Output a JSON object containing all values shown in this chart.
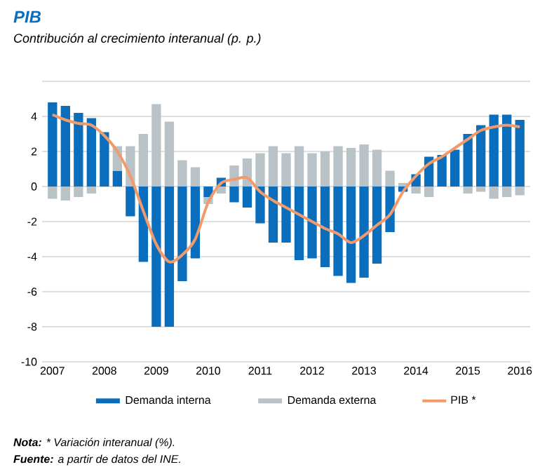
{
  "chart_data": {
    "type": "bar",
    "title": "PIB",
    "subtitle": "Contribución al crecimiento interanual (p. p.)",
    "x": [
      2007,
      2007.25,
      2007.5,
      2007.75,
      2008,
      2008.25,
      2008.5,
      2008.75,
      2009,
      2009.25,
      2009.5,
      2009.75,
      2010,
      2010.25,
      2010.5,
      2010.75,
      2011,
      2011.25,
      2011.5,
      2011.75,
      2012,
      2012.25,
      2012.5,
      2012.75,
      2013,
      2013.25,
      2013.5,
      2013.75,
      2014,
      2014.25,
      2014.5,
      2014.75,
      2015,
      2015.25,
      2015.5,
      2015.75,
      2016
    ],
    "stacked": true,
    "series": [
      {
        "name": "Demanda interna",
        "color": "#0a6ebd",
        "values": [
          4.8,
          4.6,
          4.2,
          3.9,
          3.1,
          0.9,
          -1.7,
          -4.3,
          -8.0,
          -8.0,
          -5.4,
          -4.1,
          -0.6,
          0.5,
          -0.9,
          -1.2,
          -2.1,
          -3.2,
          -3.2,
          -4.2,
          -4.1,
          -4.6,
          -5.1,
          -5.5,
          -5.2,
          -4.4,
          -2.6,
          -0.3,
          0.7,
          1.7,
          1.8,
          2.1,
          3.0,
          3.5,
          4.1,
          4.1,
          3.8
        ]
      },
      {
        "name": "Demanda externa",
        "color": "#b8c2c7",
        "values": [
          -0.7,
          -0.8,
          -0.6,
          -0.4,
          null,
          1.4,
          2.3,
          3.0,
          4.7,
          3.7,
          1.5,
          1.1,
          -0.4,
          -0.4,
          1.2,
          1.6,
          1.9,
          2.3,
          1.9,
          2.3,
          1.9,
          2.0,
          2.3,
          2.2,
          2.4,
          2.1,
          0.9,
          0.2,
          -0.4,
          -0.6,
          null,
          null,
          -0.4,
          -0.3,
          -0.7,
          -0.6,
          -0.5
        ]
      },
      {
        "name": "PIB *",
        "type": "line",
        "color": "#f39a6b",
        "values": [
          4.1,
          3.8,
          3.6,
          3.5,
          2.9,
          2.0,
          0.6,
          -1.4,
          -3.3,
          -4.3,
          -3.9,
          -3.0,
          -0.9,
          0.2,
          0.4,
          0.5,
          -0.3,
          -0.8,
          -1.2,
          -1.6,
          -2.0,
          -2.4,
          -2.7,
          -3.2,
          -2.8,
          -2.2,
          -1.6,
          -0.3,
          0.6,
          1.3,
          1.7,
          2.2,
          2.7,
          3.2,
          3.4,
          3.5,
          3.4
        ]
      }
    ],
    "xlim": [
      2006.8,
      2016.2
    ],
    "xticks": [
      2007,
      2008,
      2009,
      2010,
      2011,
      2012,
      2013,
      2014,
      2015,
      2016
    ],
    "ylim": [
      -10,
      6
    ],
    "yticks": [
      -10,
      -8,
      -6,
      -4,
      -2,
      0,
      2,
      4,
      {
        "value": 6,
        "label": null
      }
    ],
    "grid": "y",
    "legend": "bottom",
    "annotations": [
      "**Nota:** * Variación interanual (%).",
      "**Fuente:** a partir de datos del INE."
    ]
  }
}
